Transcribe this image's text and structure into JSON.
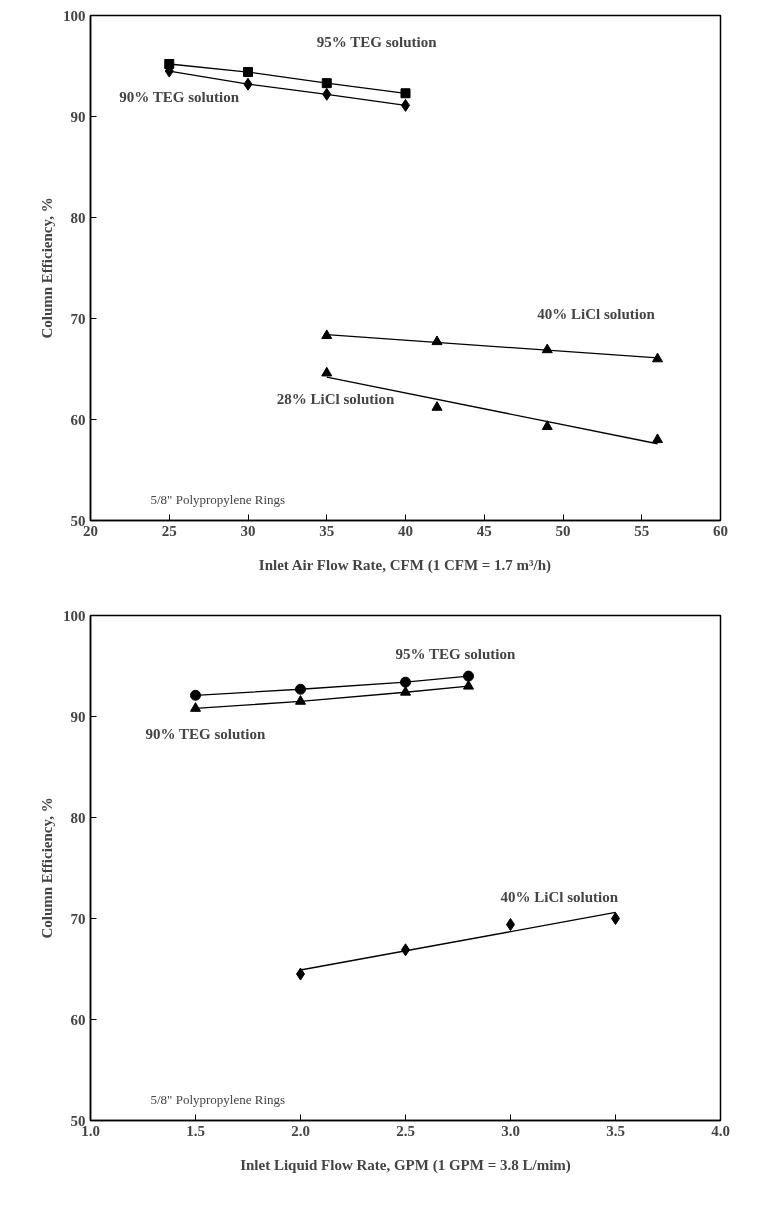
{
  "chart_data": [
    {
      "type": "scatter",
      "xlabel": "Inlet Air Flow Rate, CFM (1 CFM = 1.7 m³/h)",
      "ylabel": "Column Efficiency, %",
      "annotations": [
        "5/8\" Polypropylene Rings"
      ],
      "xlim": [
        20,
        60
      ],
      "ylim": [
        50,
        100
      ],
      "xticks": [
        20,
        25,
        30,
        35,
        40,
        45,
        50,
        55,
        60
      ],
      "yticks": [
        50,
        60,
        70,
        80,
        90,
        100
      ],
      "grid": false,
      "series": [
        {
          "name": "95% TEG solution",
          "type": "line",
          "marker": "square",
          "color": "#000000",
          "x": [
            25,
            30,
            35,
            40
          ],
          "values": [
            95.2,
            94.4,
            93.3,
            92.3
          ]
        },
        {
          "name": "90% TEG solution",
          "type": "line",
          "marker": "diamond",
          "color": "#000000",
          "x": [
            25,
            30,
            35,
            40
          ],
          "values": [
            94.5,
            93.2,
            92.2,
            91.1
          ]
        },
        {
          "name": "40% LiCl solution",
          "type": "scatter",
          "marker": "triangle",
          "color": "#000000",
          "x": [
            35,
            42,
            49,
            56
          ],
          "values": [
            68.3,
            67.7,
            66.9,
            66.0
          ]
        },
        {
          "name": "28% LiCl solution",
          "type": "scatter",
          "marker": "triangle",
          "color": "#000000",
          "x": [
            35,
            42,
            49,
            56
          ],
          "values": [
            64.6,
            61.2,
            59.3,
            58.0
          ]
        },
        {
          "type": "line",
          "marker": "none",
          "color": "#000000",
          "x": [
            35,
            56
          ],
          "values": [
            68.4,
            66.1
          ]
        },
        {
          "type": "line",
          "marker": "none",
          "color": "#000000",
          "x": [
            35,
            56
          ],
          "values": [
            64.2,
            57.6
          ]
        }
      ]
    },
    {
      "type": "scatter",
      "xlabel": "Inlet Liquid Flow Rate, GPM (1 GPM = 3.8 L/mim)",
      "ylabel": "Column Efficiency, %",
      "annotations": [
        "5/8\" Polypropylene Rings"
      ],
      "xlim": [
        1.0,
        4.0
      ],
      "ylim": [
        50,
        100
      ],
      "xticks": [
        {
          "value": 1.0,
          "label": "1.0"
        },
        {
          "value": 1.5,
          "label": "1.5"
        },
        {
          "value": 2.0,
          "label": "2.0"
        },
        {
          "value": 2.5,
          "label": "2.5"
        },
        {
          "value": 3.0,
          "label": "3.0"
        },
        {
          "value": 3.5,
          "label": "3.5"
        },
        {
          "value": 4.0,
          "label": "4.0"
        }
      ],
      "yticks": [
        50,
        60,
        70,
        80,
        90,
        100
      ],
      "grid": false,
      "series": [
        {
          "name": "95% TEG solution",
          "type": "line",
          "marker": "circle",
          "color": "#000000",
          "x": [
            1.5,
            2.0,
            2.5,
            2.8
          ],
          "values": [
            92.1,
            92.7,
            93.4,
            94.0
          ]
        },
        {
          "name": "90% TEG solution",
          "type": "line",
          "marker": "triangle",
          "color": "#000000",
          "x": [
            1.5,
            2.0,
            2.5,
            2.8
          ],
          "values": [
            90.8,
            91.5,
            92.4,
            93.0
          ]
        },
        {
          "name": "40% LiCl solution",
          "type": "scatter",
          "marker": "diamond",
          "color": "#000000",
          "x": [
            2.0,
            2.5,
            3.0,
            3.5
          ],
          "values": [
            64.5,
            66.9,
            69.4,
            70.0
          ]
        },
        {
          "type": "line",
          "marker": "none",
          "color": "#000000",
          "x": [
            2.0,
            3.5
          ],
          "values": [
            64.9,
            70.6
          ]
        }
      ]
    }
  ]
}
